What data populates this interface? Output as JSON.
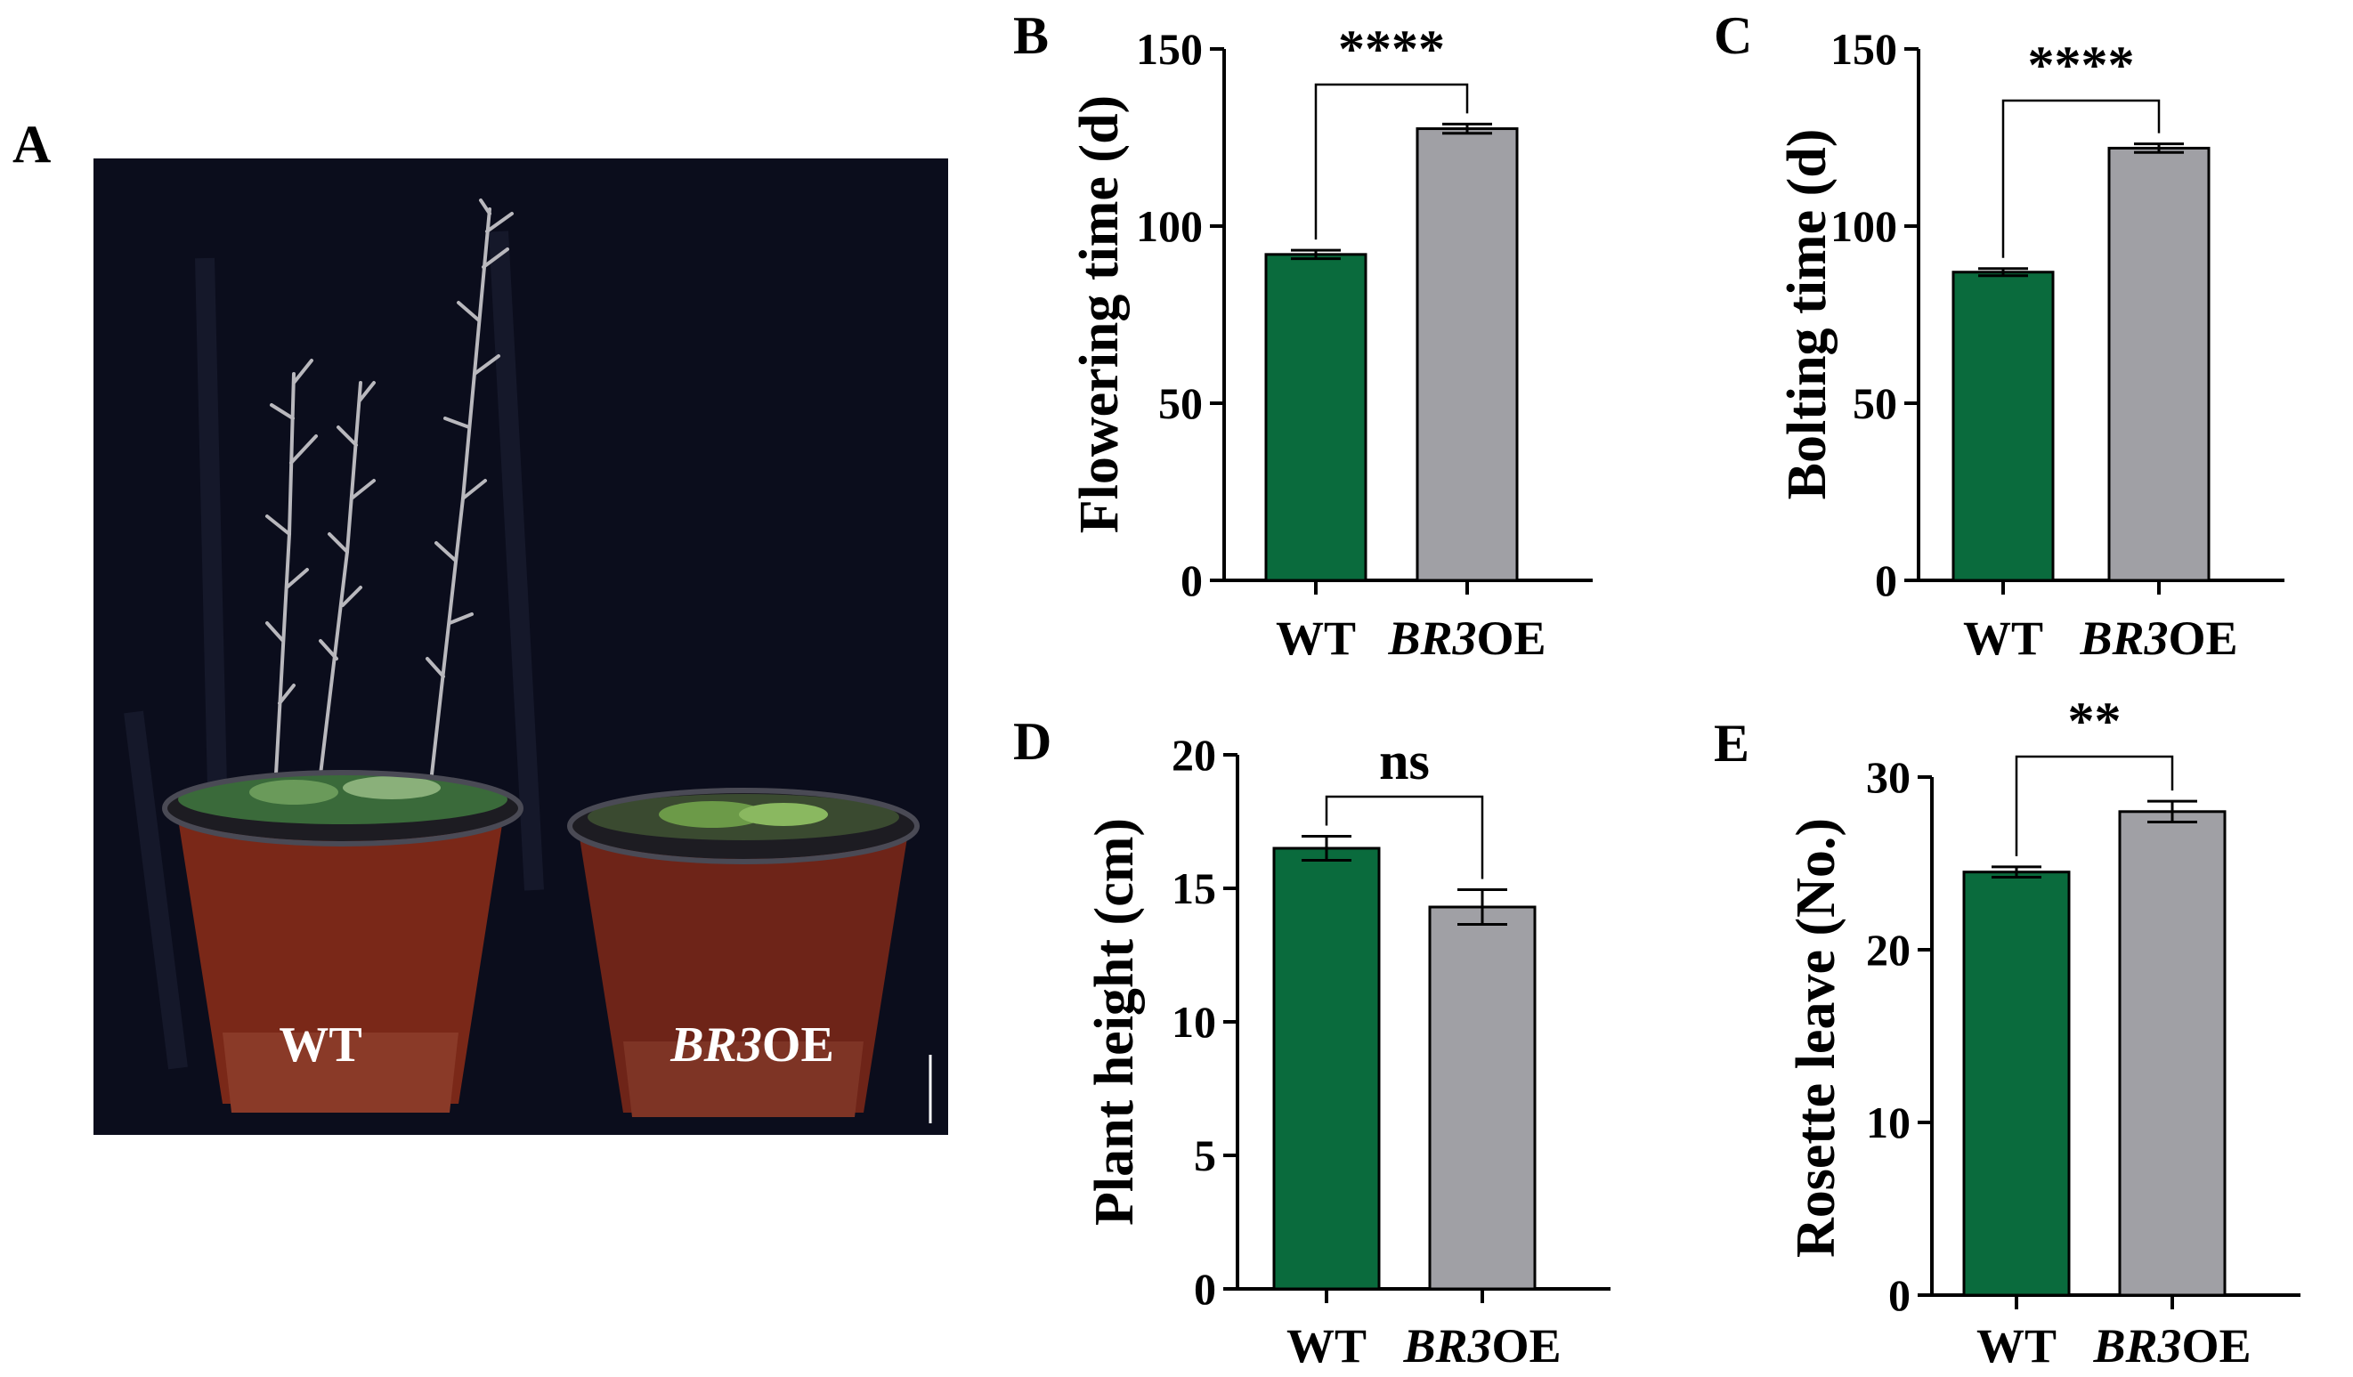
{
  "colors": {
    "wt": "#0a6b3d",
    "oe": "#a0a0a5",
    "axis": "#000000",
    "photo_bg": "#0b0d1c",
    "pot": "#7a2818"
  },
  "photo": {
    "panel_letter": "A",
    "wt_label": "WT",
    "oe_label_italic": "BR3",
    "oe_label_suffix": "OE"
  },
  "chart_data": [
    {
      "panel": "B",
      "type": "bar",
      "categories_plain": [
        "WT",
        ""
      ],
      "categories_italic": [
        "",
        "BR3"
      ],
      "categories_suffix": [
        "",
        "OE"
      ],
      "values": [
        92,
        127.5
      ],
      "errors": [
        1.2,
        1.3
      ],
      "ylabel": "Flowering time (d)",
      "ylim": [
        0,
        150
      ],
      "ticks": [
        0,
        50,
        100,
        150
      ],
      "tick_labels": [
        "0",
        "50",
        "100",
        "150"
      ],
      "significance": "****"
    },
    {
      "panel": "C",
      "type": "bar",
      "categories_plain": [
        "WT",
        ""
      ],
      "categories_italic": [
        "",
        "BR3"
      ],
      "categories_suffix": [
        "",
        "OE"
      ],
      "values": [
        87,
        122
      ],
      "errors": [
        1,
        1.2
      ],
      "ylabel": "Bolting time (d)",
      "ylim": [
        0,
        150
      ],
      "ticks": [
        0,
        50,
        100,
        150
      ],
      "tick_labels": [
        "0",
        "50",
        "100",
        "150"
      ],
      "significance": "****"
    },
    {
      "panel": "D",
      "type": "bar",
      "categories_plain": [
        "WT",
        ""
      ],
      "categories_italic": [
        "",
        "BR3"
      ],
      "categories_suffix": [
        "",
        "OE"
      ],
      "values": [
        16.5,
        14.3
      ],
      "errors": [
        0.45,
        0.65
      ],
      "ylabel": "Plant height (cm)",
      "ylim": [
        0,
        20
      ],
      "ticks": [
        0,
        5,
        10,
        15,
        20
      ],
      "tick_labels": [
        "0",
        "5",
        "10",
        "15",
        "20"
      ],
      "significance": "ns"
    },
    {
      "panel": "E",
      "type": "bar",
      "categories_plain": [
        "WT",
        ""
      ],
      "categories_italic": [
        "",
        "BR3"
      ],
      "categories_suffix": [
        "",
        "OE"
      ],
      "values": [
        24.5,
        28
      ],
      "errors": [
        0.3,
        0.6
      ],
      "ylabel": "Rosette leave (No.)",
      "ylim": [
        0,
        30
      ],
      "ticks": [
        0,
        10,
        20,
        30
      ],
      "tick_labels": [
        "0",
        "10",
        "20",
        "30"
      ],
      "significance": "**"
    }
  ]
}
